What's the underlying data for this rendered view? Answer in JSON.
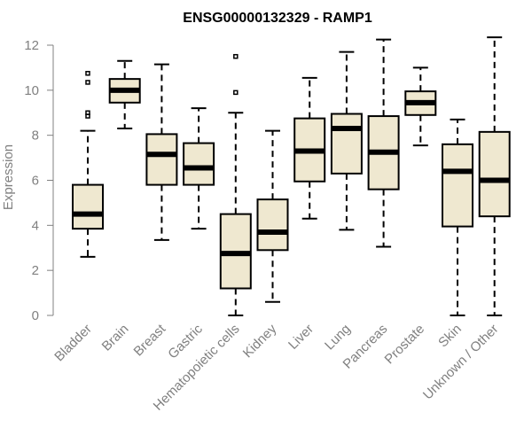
{
  "chart_data": {
    "type": "boxplot",
    "title": "ENSG00000132329 - RAMP1",
    "xlabel": "",
    "ylabel": "Expression",
    "ylim": [
      0,
      12.3
    ],
    "yticks": [
      0,
      2,
      4,
      6,
      8,
      10,
      12
    ],
    "categories": [
      "Bladder",
      "Brain",
      "Breast",
      "Gastric",
      "Hematopoietic cells",
      "Kidney",
      "Liver",
      "Lung",
      "Pancreas",
      "Prostate",
      "Skin",
      "Unknown / Other"
    ],
    "boxes": [
      {
        "category": "Bladder",
        "whisker_low": 2.6,
        "q1": 3.85,
        "median": 4.5,
        "q3": 5.8,
        "whisker_high": 8.2,
        "outliers": [
          8.85,
          9.0,
          10.35,
          10.75
        ]
      },
      {
        "category": "Brain",
        "whisker_low": 8.3,
        "q1": 9.45,
        "median": 10.0,
        "q3": 10.5,
        "whisker_high": 11.3,
        "outliers": []
      },
      {
        "category": "Breast",
        "whisker_low": 3.35,
        "q1": 5.8,
        "median": 7.15,
        "q3": 8.05,
        "whisker_high": 11.15,
        "outliers": []
      },
      {
        "category": "Gastric",
        "whisker_low": 3.85,
        "q1": 5.8,
        "median": 6.55,
        "q3": 7.65,
        "whisker_high": 9.2,
        "outliers": []
      },
      {
        "category": "Hematopoietic cells",
        "whisker_low": 0.0,
        "q1": 1.2,
        "median": 2.75,
        "q3": 4.5,
        "whisker_high": 9.0,
        "outliers": [
          9.9,
          11.5
        ]
      },
      {
        "category": "Kidney",
        "whisker_low": 0.6,
        "q1": 2.9,
        "median": 3.7,
        "q3": 5.15,
        "whisker_high": 8.2,
        "outliers": []
      },
      {
        "category": "Liver",
        "whisker_low": 4.3,
        "q1": 5.95,
        "median": 7.3,
        "q3": 8.75,
        "whisker_high": 10.55,
        "outliers": []
      },
      {
        "category": "Lung",
        "whisker_low": 3.8,
        "q1": 6.3,
        "median": 8.3,
        "q3": 8.95,
        "whisker_high": 11.7,
        "outliers": []
      },
      {
        "category": "Pancreas",
        "whisker_low": 3.05,
        "q1": 5.6,
        "median": 7.25,
        "q3": 8.85,
        "whisker_high": 12.25,
        "outliers": []
      },
      {
        "category": "Prostate",
        "whisker_low": 7.55,
        "q1": 8.9,
        "median": 9.45,
        "q3": 9.95,
        "whisker_high": 11.0,
        "outliers": []
      },
      {
        "category": "Skin",
        "whisker_low": 0.0,
        "q1": 3.95,
        "median": 6.4,
        "q3": 7.6,
        "whisker_high": 8.7,
        "outliers": []
      },
      {
        "category": "Unknown / Other",
        "whisker_low": 0.0,
        "q1": 4.4,
        "median": 6.0,
        "q3": 8.15,
        "whisker_high": 12.35,
        "outliers": []
      }
    ],
    "colors": {
      "box_fill": "#efe8d0",
      "stroke": "#000000",
      "axis": "#808080",
      "text": "#808080",
      "title": "#000000"
    }
  }
}
